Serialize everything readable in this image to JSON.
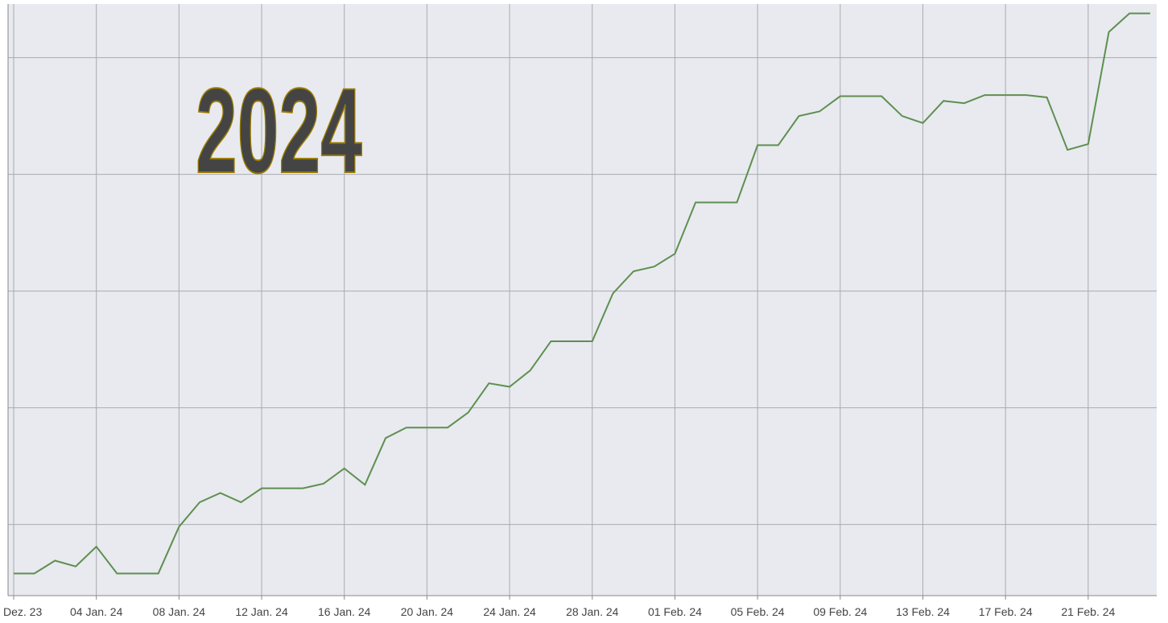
{
  "chart_data": {
    "type": "line",
    "annotation": "2024",
    "categories": [
      "Dez. 23",
      null,
      null,
      null,
      "04 Jan. 24",
      null,
      null,
      null,
      "08 Jan. 24",
      null,
      null,
      null,
      "12 Jan. 24",
      null,
      null,
      null,
      "16 Jan. 24",
      null,
      null,
      null,
      "20 Jan. 24",
      null,
      null,
      null,
      "24 Jan. 24",
      null,
      null,
      null,
      "28 Jan. 24",
      null,
      null,
      null,
      "01 Feb. 24",
      null,
      null,
      null,
      "05 Feb. 24",
      null,
      null,
      null,
      "09 Feb. 24",
      null,
      null,
      null,
      "13 Feb. 24",
      null,
      null,
      null,
      "17 Feb. 24",
      null,
      null,
      null,
      "21 Feb. 24",
      null,
      null,
      null
    ],
    "series": [
      {
        "color": "#5e8f50",
        "values": [
          5.8,
          5.8,
          6.9,
          6.4,
          8.1,
          5.8,
          5.8,
          5.8,
          9.8,
          11.9,
          12.7,
          11.9,
          13.1,
          13.1,
          13.1,
          13.5,
          14.8,
          13.4,
          17.4,
          18.3,
          18.3,
          18.3,
          19.6,
          22.1,
          21.8,
          23.2,
          25.7,
          25.7,
          25.7,
          29.8,
          31.7,
          32.1,
          33.2,
          37.6,
          37.6,
          37.6,
          42.5,
          42.5,
          45.0,
          45.4,
          46.7,
          46.7,
          46.7,
          45.0,
          44.4,
          46.3,
          46.1,
          46.8,
          46.8,
          46.8,
          46.6,
          42.1,
          42.6,
          52.2,
          53.8,
          53.8
        ]
      }
    ],
    "ylim": [
      3.9,
      54.6
    ],
    "yticks": [
      10,
      20,
      30,
      40,
      50
    ],
    "grid": true
  }
}
